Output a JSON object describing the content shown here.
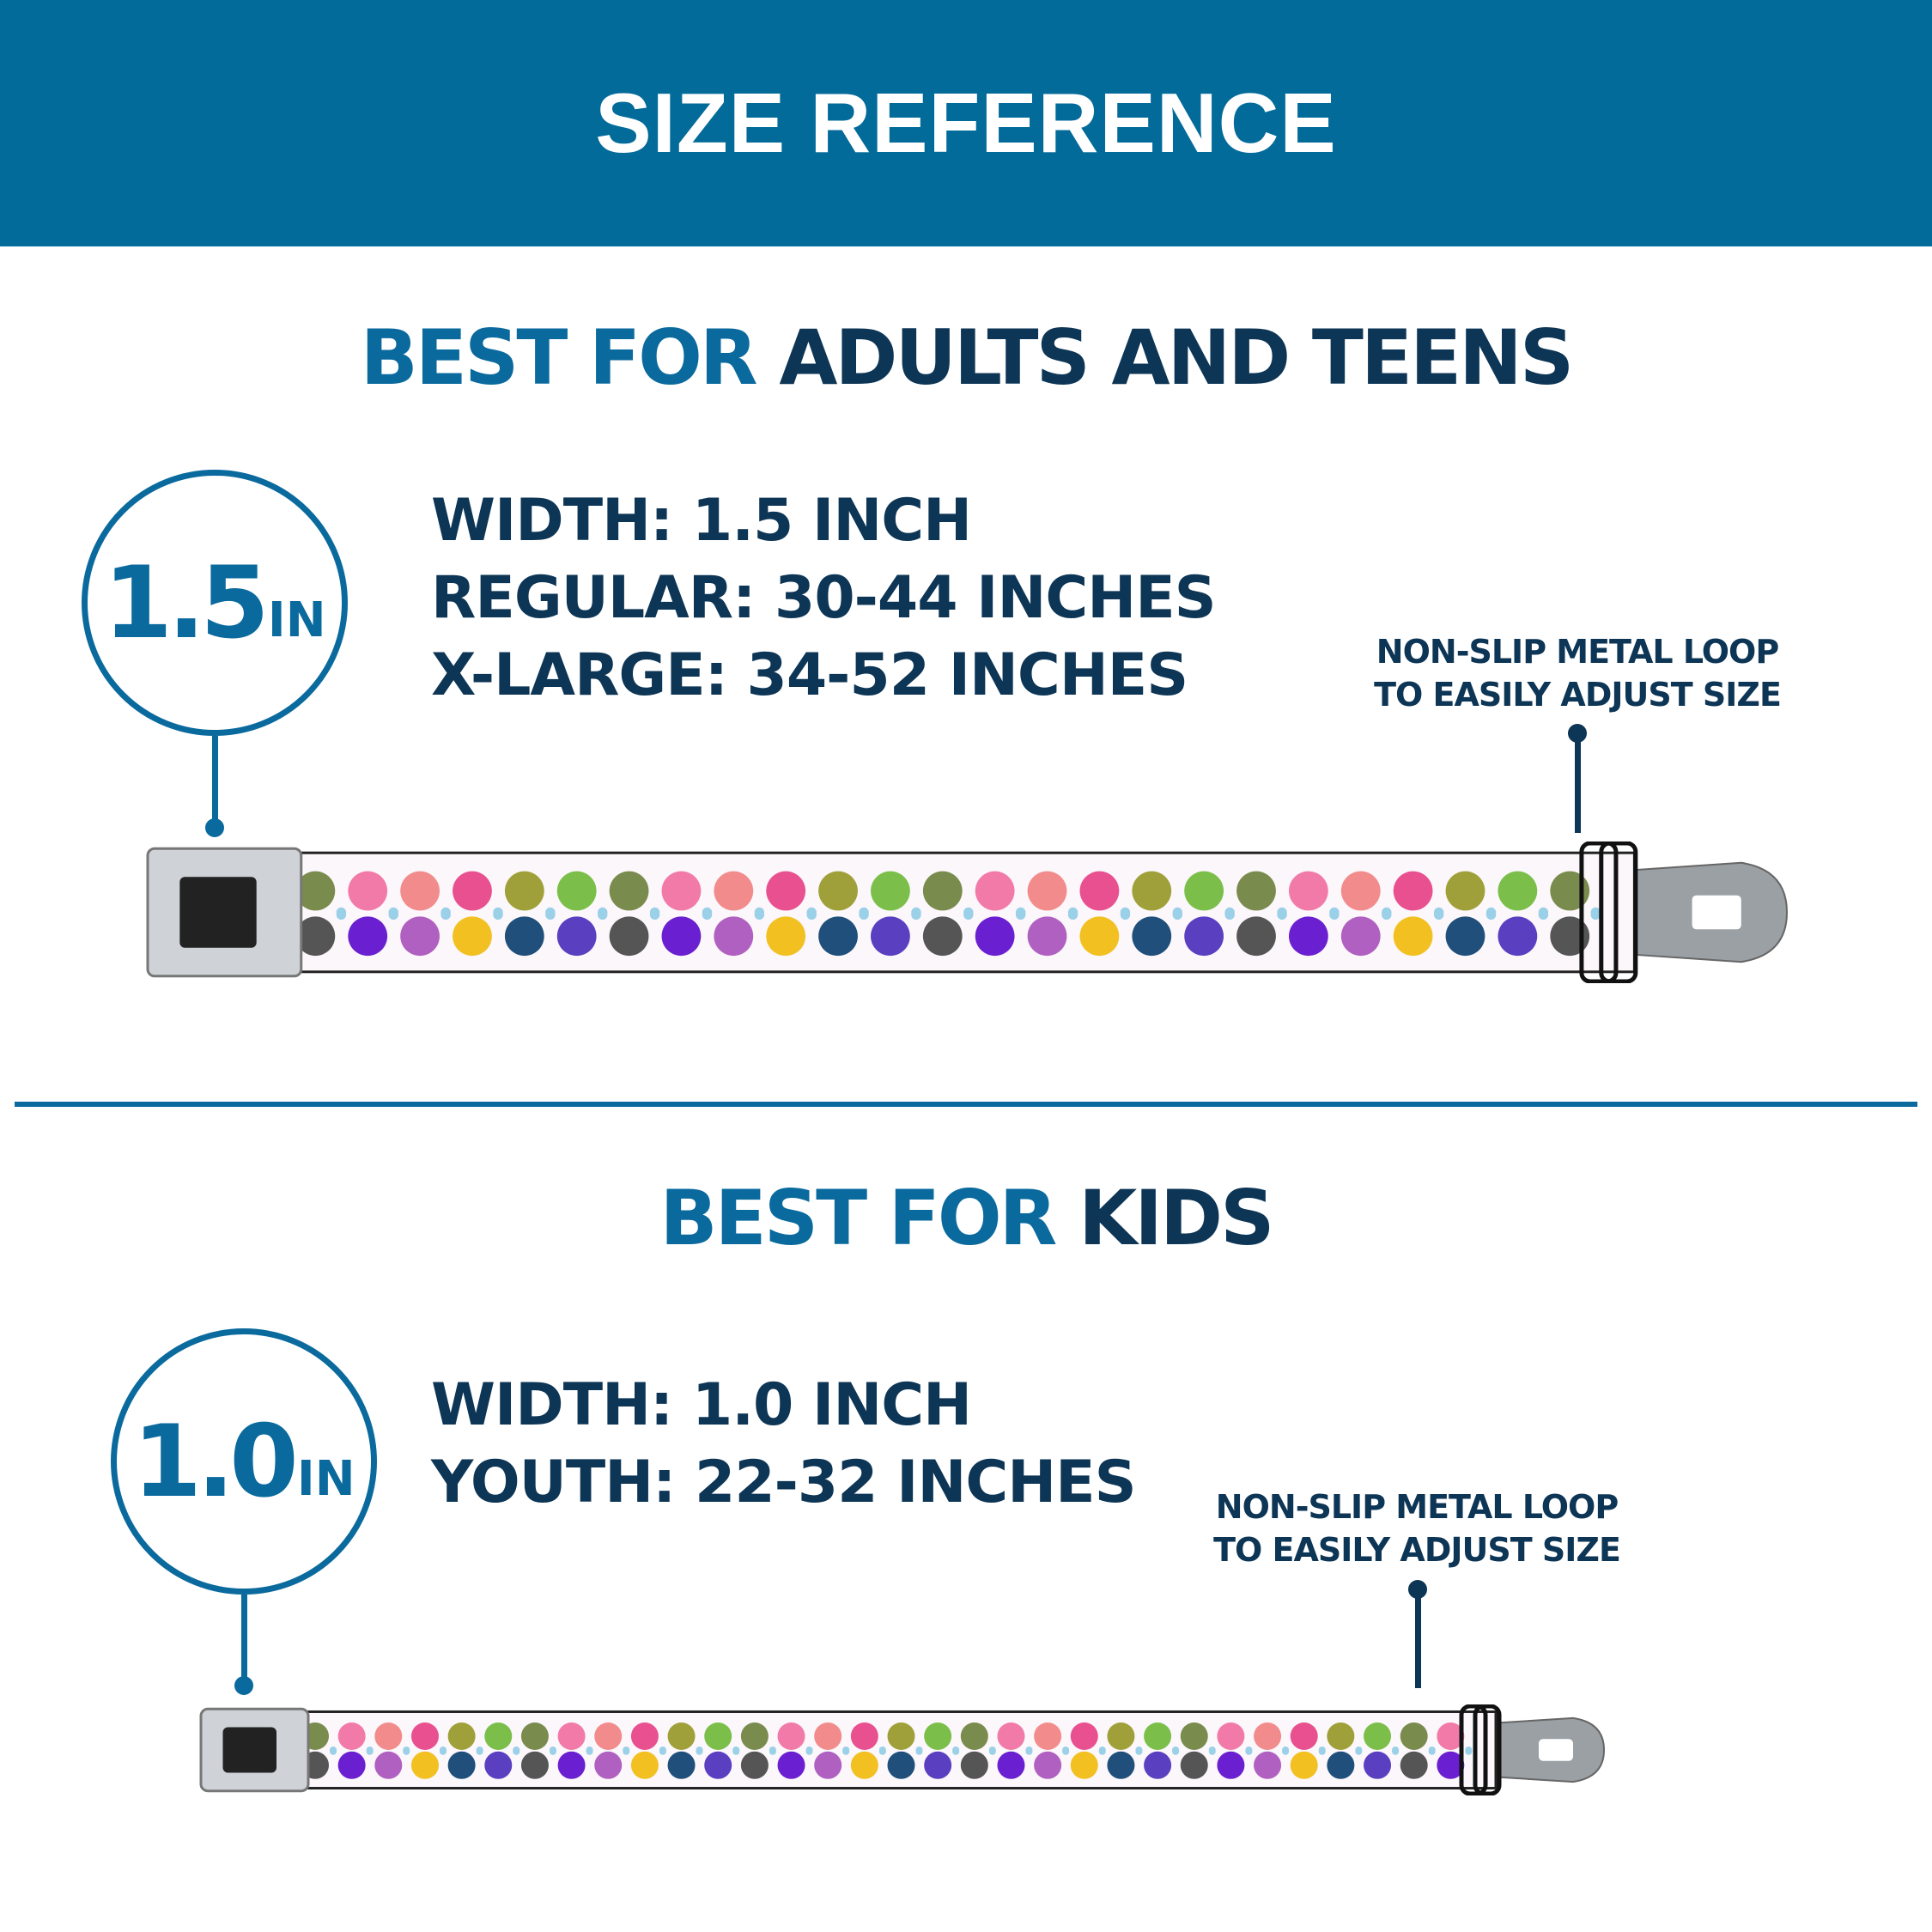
{
  "header": {
    "title": "SIZE REFERENCE"
  },
  "adults": {
    "title_prefix": "BEST FOR",
    "title_main": "ADULTS AND TEENS",
    "badge_value": "1.5",
    "badge_unit": "IN",
    "specs": [
      "WIDTH: 1.5 INCH",
      "REGULAR: 30-44 INCHES",
      "X-LARGE: 34-52 INCHES"
    ],
    "note": [
      "NON-SLIP METAL LOOP",
      "TO EASILY ADJUST SIZE"
    ]
  },
  "kids": {
    "title_prefix": "BEST FOR",
    "title_main": "KIDS",
    "badge_value": "1.0",
    "badge_unit": "IN",
    "specs": [
      "WIDTH: 1.0 INCH",
      "YOUTH: 22-32 INCHES"
    ],
    "note": [
      "NON-SLIP METAL LOOP",
      "TO EASILY ADJUST SIZE"
    ]
  },
  "colors": {
    "header": "#036b9a",
    "accent": "#0a6a9e",
    "navy": "#0d3555"
  }
}
